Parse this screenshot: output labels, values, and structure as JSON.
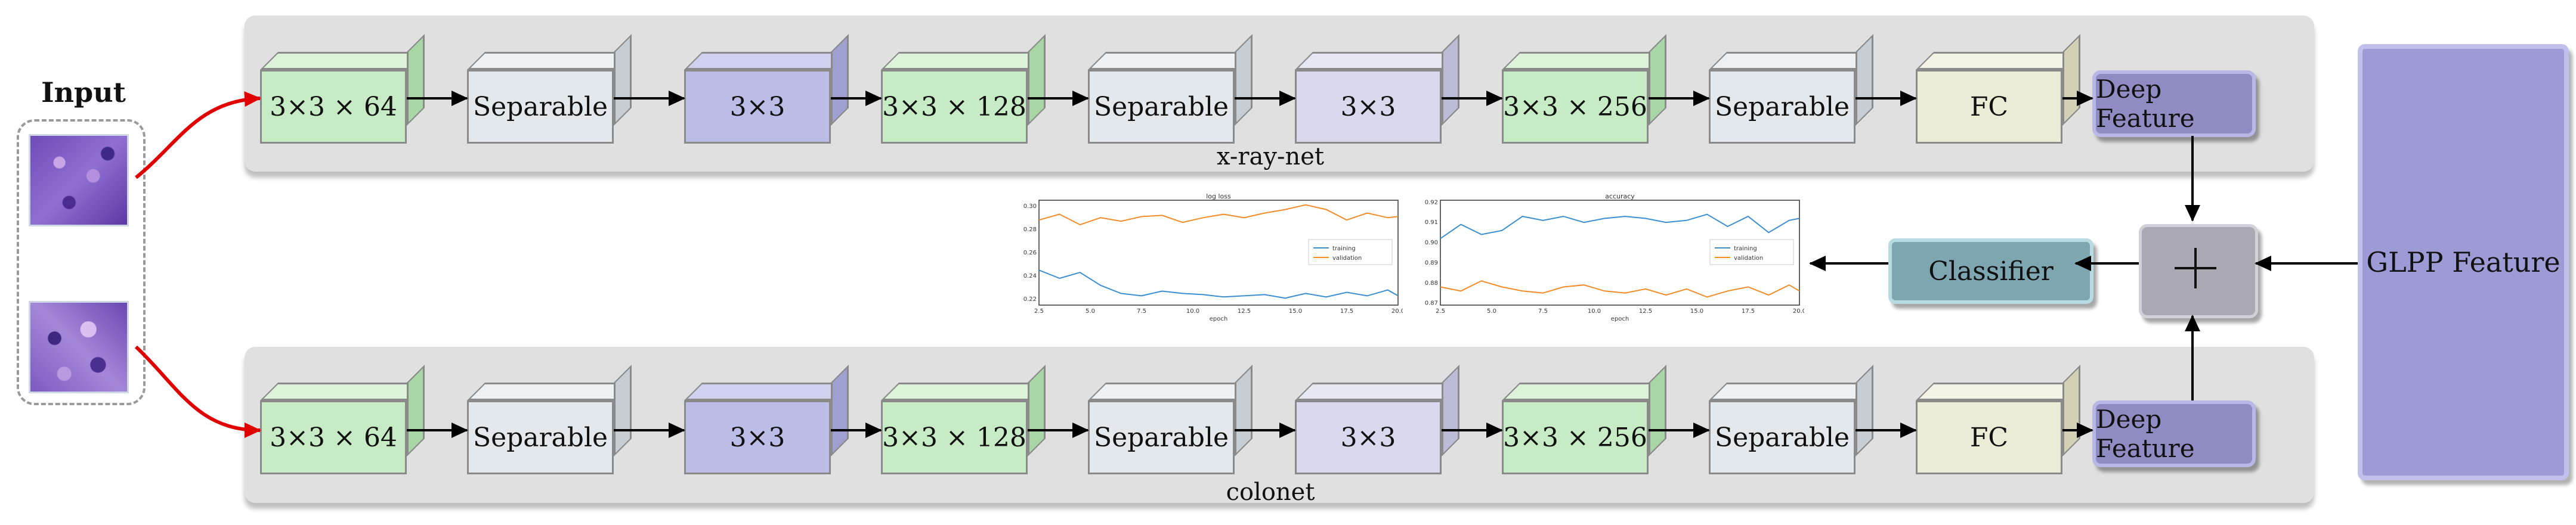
{
  "input": {
    "title": "Input"
  },
  "top_branch": {
    "label": "x-ray-net",
    "blocks": [
      "3×3 × 64",
      "Separable",
      "3×3",
      "3×3 × 128",
      "Separable",
      "3×3",
      "3×3 × 256",
      "Separable",
      "FC"
    ],
    "feature": "Deep Feature"
  },
  "bottom_branch": {
    "label": "colonet",
    "blocks": [
      "3×3 × 64",
      "Separable",
      "3×3",
      "3×3 × 128",
      "Separable",
      "3×3",
      "3×3 × 256",
      "Separable",
      "FC"
    ],
    "feature": "Deep Feature"
  },
  "classifier": "Classifier",
  "fusion_symbol": "+",
  "glpp": "GLPP Feature",
  "colors": {
    "conv": "#c7ebc5",
    "separable": "#e3e8ec",
    "pool_blue": "#bcbde6",
    "pool_lavender": "#d9d8ec",
    "fc": "#ecebd6",
    "deep_feature": "#8e8cc2",
    "classifier": "#7ea6b1",
    "glpp": "#9c9bd6",
    "input_arrow": "#e00000"
  },
  "chart_data": [
    {
      "type": "line",
      "title": "log loss",
      "xlabel": "epoch",
      "ylabel": "",
      "x": [
        2.5,
        3.5,
        4.5,
        5.5,
        6.5,
        7.5,
        8.5,
        9.5,
        10.5,
        11.5,
        12.5,
        13.5,
        14.5,
        15.5,
        16.5,
        17.5,
        18.5,
        19.5,
        20.0
      ],
      "xlim": [
        2.5,
        20.0
      ],
      "ylim": [
        0.215,
        0.305
      ],
      "xticks": [
        "2.5",
        "5.0",
        "7.5",
        "10.0",
        "12.5",
        "15.0",
        "17.5",
        "20.0"
      ],
      "yticks": [
        "0.22",
        "0.24",
        "0.26",
        "0.28",
        "0.30"
      ],
      "legend": "center-right",
      "series": [
        {
          "name": "training",
          "color": "#3b8fd0",
          "values": [
            0.245,
            0.238,
            0.243,
            0.232,
            0.225,
            0.223,
            0.227,
            0.225,
            0.224,
            0.222,
            0.223,
            0.224,
            0.221,
            0.225,
            0.222,
            0.226,
            0.223,
            0.228,
            0.223
          ]
        },
        {
          "name": "validation",
          "color": "#f28c28",
          "values": [
            0.288,
            0.293,
            0.284,
            0.29,
            0.287,
            0.291,
            0.292,
            0.286,
            0.29,
            0.293,
            0.29,
            0.294,
            0.297,
            0.301,
            0.297,
            0.288,
            0.294,
            0.29,
            0.291
          ]
        }
      ]
    },
    {
      "type": "line",
      "title": "accuracy",
      "xlabel": "epoch",
      "ylabel": "",
      "x": [
        2.5,
        3.5,
        4.5,
        5.5,
        6.5,
        7.5,
        8.5,
        9.5,
        10.5,
        11.5,
        12.5,
        13.5,
        14.5,
        15.5,
        16.5,
        17.5,
        18.5,
        19.5,
        20.0
      ],
      "xlim": [
        2.5,
        20.0
      ],
      "ylim": [
        0.869,
        0.921
      ],
      "xticks": [
        "2.5",
        "5.0",
        "7.5",
        "10.0",
        "12.5",
        "15.0",
        "17.5",
        "20.0"
      ],
      "yticks": [
        "0.87",
        "0.88",
        "0.89",
        "0.90",
        "0.91",
        "0.92"
      ],
      "legend": "center-right",
      "series": [
        {
          "name": "training",
          "color": "#3b8fd0",
          "values": [
            0.902,
            0.909,
            0.904,
            0.906,
            0.913,
            0.911,
            0.913,
            0.91,
            0.912,
            0.913,
            0.912,
            0.91,
            0.911,
            0.914,
            0.908,
            0.913,
            0.905,
            0.911,
            0.912
          ]
        },
        {
          "name": "validation",
          "color": "#f28c28",
          "values": [
            0.878,
            0.876,
            0.881,
            0.878,
            0.876,
            0.875,
            0.878,
            0.879,
            0.876,
            0.875,
            0.877,
            0.874,
            0.877,
            0.873,
            0.876,
            0.878,
            0.874,
            0.879,
            0.876
          ]
        }
      ]
    }
  ]
}
